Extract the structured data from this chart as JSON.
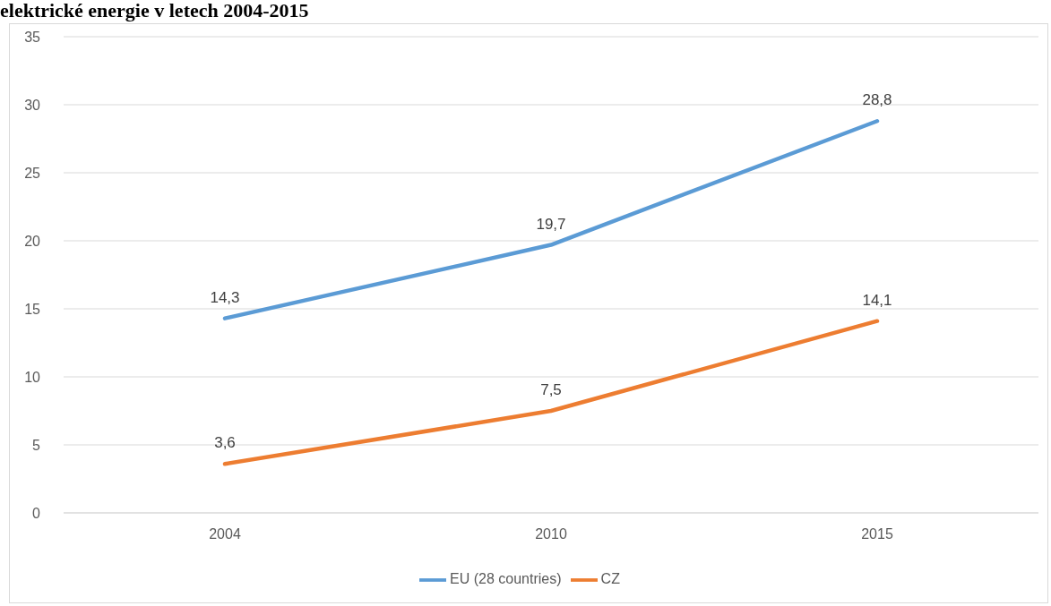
{
  "chart_data": {
    "type": "line",
    "title": "elektrické energie v letech 2004-2015",
    "categories": [
      "2004",
      "2010",
      "2015"
    ],
    "series": [
      {
        "name": "EU (28 countries)",
        "color": "#5b9bd5",
        "values": [
          14.3,
          19.7,
          28.8
        ],
        "value_labels": [
          "14,3",
          "19,7",
          "28,8"
        ]
      },
      {
        "name": "CZ",
        "color": "#ed7d31",
        "values": [
          3.6,
          7.5,
          14.1
        ],
        "value_labels": [
          "3,6",
          "7,5",
          "14,1"
        ]
      }
    ],
    "ylim": [
      0,
      35
    ],
    "yticks": [
      0,
      5,
      10,
      15,
      20,
      25,
      30,
      35
    ],
    "grid": "y",
    "legend": "bottom",
    "marker": "none",
    "line_style": "solid"
  }
}
